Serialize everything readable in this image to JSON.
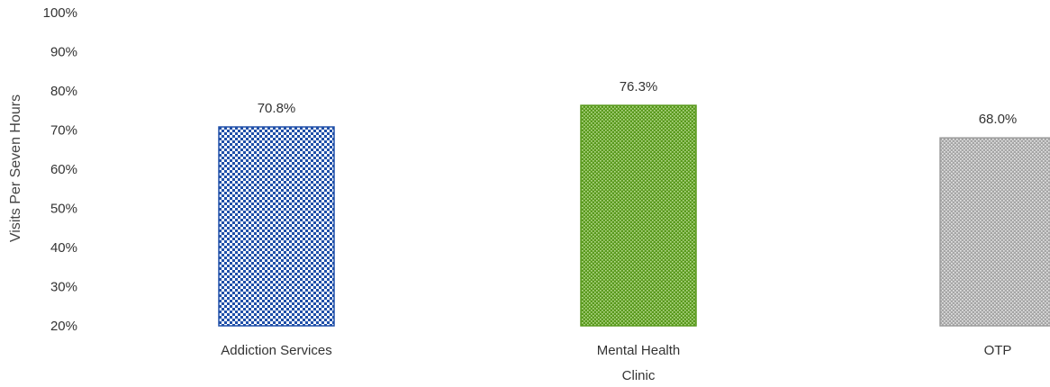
{
  "chart_data": {
    "type": "bar",
    "categories": [
      "Addiction Services",
      "Mental Health Clinic",
      "OTP"
    ],
    "category_lines": [
      [
        "Addiction Services"
      ],
      [
        "Mental Health",
        "Clinic"
      ],
      [
        "OTP"
      ]
    ],
    "values": [
      70.8,
      76.3,
      68.0
    ],
    "data_labels": [
      "70.8%",
      "76.3%",
      "68.0%"
    ],
    "title": "",
    "xlabel": "",
    "ylabel": "Visits Per Seven Hours",
    "ylim": [
      20,
      100
    ],
    "yticks": [
      "20%",
      "30%",
      "40%",
      "50%",
      "60%",
      "70%",
      "80%",
      "90%",
      "100%"
    ],
    "grid": false,
    "bar_colors": [
      "#1f4fa8",
      "#5a9a1e",
      "#9a9a9a"
    ],
    "bar_patterns": [
      "checker",
      "dotted",
      "dotted"
    ]
  }
}
